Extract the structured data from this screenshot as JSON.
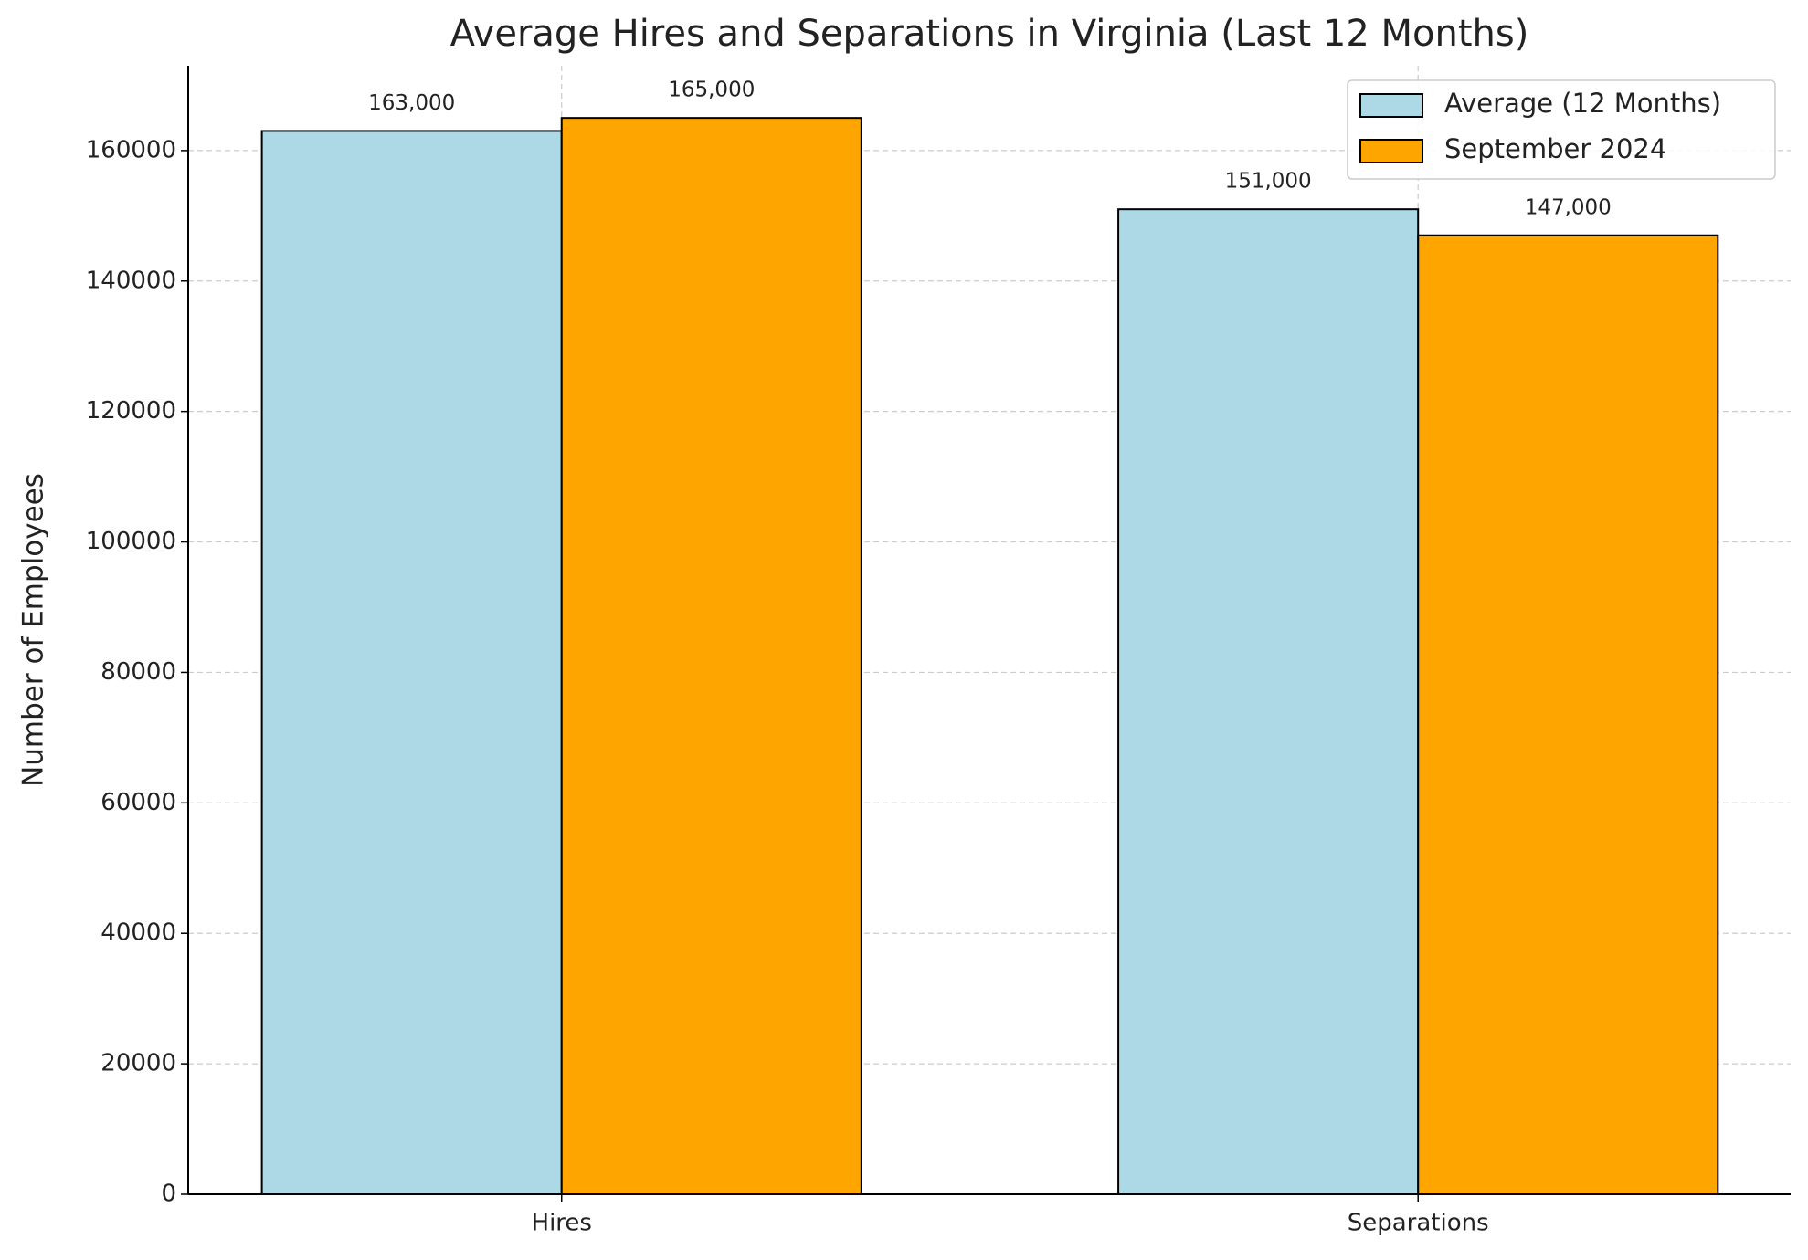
{
  "chart_data": {
    "type": "bar",
    "title": "Average Hires and Separations in Virginia (Last 12 Months)",
    "y_label": "Number of Employees",
    "categories": [
      "Hires",
      "Separations"
    ],
    "series": [
      {
        "name": "Average (12 Months)",
        "color": "#add8e6",
        "values": [
          163000,
          151000
        ],
        "value_labels": [
          "163,000",
          "151,000"
        ]
      },
      {
        "name": "September 2024",
        "color": "#ffa500",
        "values": [
          165000,
          147000
        ],
        "value_labels": [
          "165,000",
          "147,000"
        ]
      }
    ],
    "ylim": [
      0,
      173000
    ],
    "yticks": [
      0,
      20000,
      40000,
      60000,
      80000,
      100000,
      120000,
      140000,
      160000
    ],
    "grid": true,
    "legend": "upper right"
  }
}
